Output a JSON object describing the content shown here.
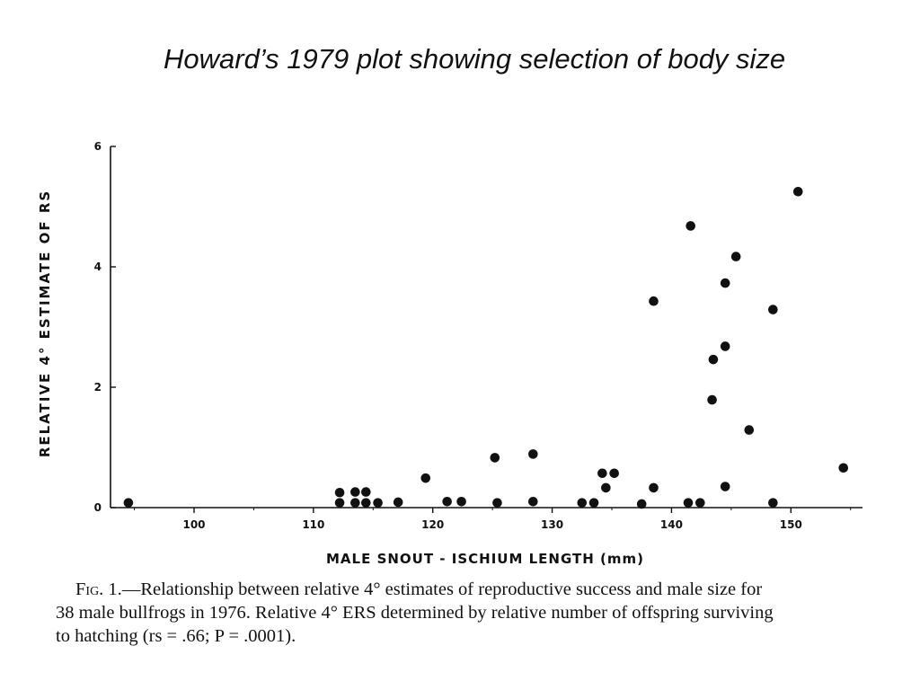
{
  "slide": {
    "title": "Howard’s 1979 plot showing selection of body size"
  },
  "chart_data": {
    "type": "scatter",
    "xlabel": "MALE SNOUT - ISCHIUM LENGTH (mm)",
    "ylabel": "RELATIVE 4° ESTIMATE OF RS",
    "xlim": [
      93,
      156
    ],
    "ylim": [
      0,
      6
    ],
    "xticks": [
      100,
      110,
      120,
      130,
      140,
      150
    ],
    "yticks": [
      0,
      2,
      4,
      6
    ],
    "grid": false,
    "points": [
      {
        "x": 94.5,
        "y": 0.08
      },
      {
        "x": 112.2,
        "y": 0.25
      },
      {
        "x": 112.2,
        "y": 0.08
      },
      {
        "x": 113.5,
        "y": 0.26
      },
      {
        "x": 113.5,
        "y": 0.08
      },
      {
        "x": 114.4,
        "y": 0.26
      },
      {
        "x": 114.4,
        "y": 0.08
      },
      {
        "x": 115.4,
        "y": 0.08
      },
      {
        "x": 117.1,
        "y": 0.09
      },
      {
        "x": 119.4,
        "y": 0.49
      },
      {
        "x": 121.2,
        "y": 0.1
      },
      {
        "x": 122.4,
        "y": 0.1
      },
      {
        "x": 125.2,
        "y": 0.83
      },
      {
        "x": 125.4,
        "y": 0.08
      },
      {
        "x": 128.4,
        "y": 0.89
      },
      {
        "x": 128.4,
        "y": 0.1
      },
      {
        "x": 132.5,
        "y": 0.08
      },
      {
        "x": 133.5,
        "y": 0.08
      },
      {
        "x": 134.2,
        "y": 0.57
      },
      {
        "x": 134.5,
        "y": 0.33
      },
      {
        "x": 135.2,
        "y": 0.57
      },
      {
        "x": 137.5,
        "y": 0.06
      },
      {
        "x": 138.5,
        "y": 3.43
      },
      {
        "x": 138.5,
        "y": 0.33
      },
      {
        "x": 141.4,
        "y": 0.08
      },
      {
        "x": 141.6,
        "y": 4.68
      },
      {
        "x": 142.4,
        "y": 0.08
      },
      {
        "x": 143.4,
        "y": 1.79
      },
      {
        "x": 143.5,
        "y": 2.46
      },
      {
        "x": 144.5,
        "y": 3.73
      },
      {
        "x": 144.5,
        "y": 2.68
      },
      {
        "x": 144.5,
        "y": 0.35
      },
      {
        "x": 145.4,
        "y": 4.17
      },
      {
        "x": 146.5,
        "y": 1.29
      },
      {
        "x": 148.5,
        "y": 3.29
      },
      {
        "x": 148.5,
        "y": 0.08
      },
      {
        "x": 150.6,
        "y": 5.25
      },
      {
        "x": 154.4,
        "y": 0.66
      }
    ]
  },
  "caption": {
    "fig_label": "Fig. 1.",
    "line1_rest": "—Relationship between relative 4° estimates of reproductive success and male size for",
    "line2": "38 male bullfrogs in 1976. Relative 4° ERS determined by relative number of offspring surviving",
    "line3": "to hatching (rs = .66; P = .0001)."
  }
}
